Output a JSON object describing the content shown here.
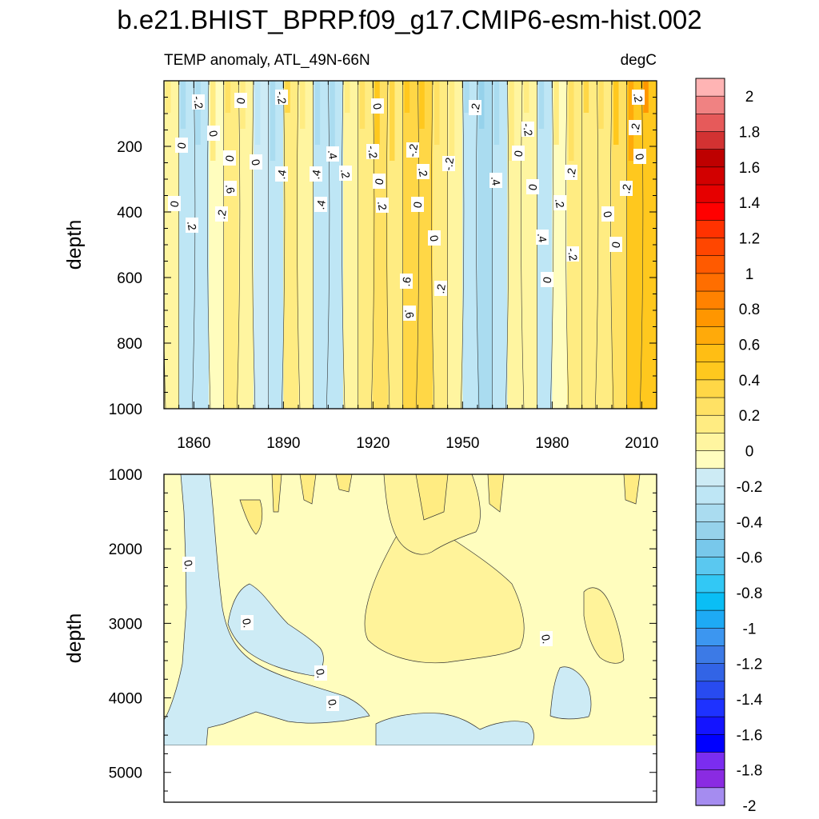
{
  "chart_data": {
    "type": "heatmap",
    "title": "b.e21.BHIST_BPRP.f09_g17.CMIP6-esm-hist.002",
    "subtitle_left": "TEMP anomaly, ATL_49N-66N",
    "subtitle_right": "degC",
    "xlim": [
      1850,
      2015
    ],
    "x_ticks": [
      1860,
      1890,
      1920,
      1950,
      1980,
      2010
    ],
    "x_tick_labels": [
      "1860",
      "1890",
      "1920",
      "1950",
      "1980",
      "2010"
    ],
    "upper_panel": {
      "ylabel": "depth",
      "ylim": [
        1000,
        0
      ],
      "y_ticks": [
        200,
        400,
        600,
        800,
        1000
      ],
      "y_tick_labels": [
        "200",
        "400",
        "600",
        "800",
        "1000"
      ],
      "columns": [
        {
          "year": 1851,
          "value": 0.15
        },
        {
          "year": 1856,
          "value": -0.15
        },
        {
          "year": 1861,
          "value": -0.1
        },
        {
          "year": 1866,
          "value": 0.05
        },
        {
          "year": 1871,
          "value": 0.2
        },
        {
          "year": 1876,
          "value": 0.1
        },
        {
          "year": 1881,
          "value": -0.05
        },
        {
          "year": 1886,
          "value": -0.15
        },
        {
          "year": 1891,
          "value": 0.3
        },
        {
          "year": 1896,
          "value": 0.15
        },
        {
          "year": 1901,
          "value": -0.1
        },
        {
          "year": 1906,
          "value": -0.15
        },
        {
          "year": 1911,
          "value": 0.1
        },
        {
          "year": 1916,
          "value": 0.2
        },
        {
          "year": 1921,
          "value": 0.35
        },
        {
          "year": 1926,
          "value": 0.25
        },
        {
          "year": 1931,
          "value": 0.4
        },
        {
          "year": 1936,
          "value": 0.45
        },
        {
          "year": 1941,
          "value": 0.2
        },
        {
          "year": 1946,
          "value": 0.15
        },
        {
          "year": 1951,
          "value": -0.1
        },
        {
          "year": 1956,
          "value": -0.2
        },
        {
          "year": 1961,
          "value": -0.15
        },
        {
          "year": 1966,
          "value": 0.1
        },
        {
          "year": 1971,
          "value": 0.15
        },
        {
          "year": 1976,
          "value": -0.15
        },
        {
          "year": 1981,
          "value": 0.05
        },
        {
          "year": 1986,
          "value": 0.2
        },
        {
          "year": 1991,
          "value": 0.25
        },
        {
          "year": 1996,
          "value": 0.2
        },
        {
          "year": 2001,
          "value": 0.35
        },
        {
          "year": 2006,
          "value": 0.5
        },
        {
          "year": 2011,
          "value": 0.6
        }
      ],
      "contour_labels": [
        "-.2",
        "0",
        "0",
        "0",
        "-.2",
        "0",
        ".2",
        "0",
        "0",
        ".4",
        ".6",
        ".2",
        ".4",
        ".4",
        ".2",
        ".4",
        "0",
        "-.2",
        "-.2",
        "0",
        ".2",
        "0",
        ".2",
        "-.2",
        "0",
        ".2",
        ".4",
        "0",
        "-.2",
        "0",
        ".2",
        ".2",
        ".4",
        "0",
        "-.2",
        "0",
        "0",
        ".2",
        "0",
        ".2",
        ".2",
        ".6",
        ".6",
        ".2"
      ]
    },
    "lower_panel": {
      "ylabel": "depth",
      "ylim": [
        5400,
        1000
      ],
      "data_bottom_depth": 4600,
      "y_ticks": [
        1000,
        2000,
        3000,
        4000,
        5000
      ],
      "y_tick_labels": [
        "1000",
        "2000",
        "3000",
        "4000",
        "5000"
      ],
      "contour_labels": [
        "0.",
        "0.",
        "0.",
        "0.",
        "0."
      ]
    },
    "colorbar": {
      "levels": [
        -2,
        -1.9,
        -1.8,
        -1.7,
        -1.6,
        -1.5,
        -1.4,
        -1.3,
        -1.2,
        -1.1,
        -1,
        -0.9,
        -0.8,
        -0.7,
        -0.6,
        -0.5,
        -0.4,
        -0.3,
        -0.2,
        -0.1,
        0,
        0.1,
        0.2,
        0.3,
        0.4,
        0.5,
        0.6,
        0.7,
        0.8,
        0.9,
        1,
        1.1,
        1.2,
        1.3,
        1.4,
        1.5,
        1.6,
        1.7,
        1.8,
        1.9,
        2,
        2.1
      ],
      "colors": [
        "#a58cf0",
        "#8a2be2",
        "#7b2df0",
        "#0000ff",
        "#1414ff",
        "#1e32ff",
        "#284bf0",
        "#3264e6",
        "#3c7ae6",
        "#3c96f0",
        "#1eaaf5",
        "#0abef5",
        "#32c8f5",
        "#5ac8f0",
        "#78c8eb",
        "#96d2eb",
        "#aadcf0",
        "#bee6f5",
        "#cdebf5",
        "#fffdbe",
        "#fff5a0",
        "#ffec82",
        "#ffe164",
        "#ffd746",
        "#ffc81e",
        "#ffbe14",
        "#ffaa0a",
        "#ff9600",
        "#ff8200",
        "#ff6e00",
        "#ff5a00",
        "#ff4600",
        "#ff3200",
        "#ff0000",
        "#e60000",
        "#d20000",
        "#be0000",
        "#d23232",
        "#e65a5a",
        "#f08282",
        "#ffb4b4"
      ],
      "tick_labels": [
        "2",
        "1.8",
        "1.6",
        "1.4",
        "1.2",
        "1",
        "0.8",
        "0.6",
        "0.4",
        "0.2",
        "0",
        "-0.2",
        "-0.4",
        "-0.6",
        "-0.8",
        "-1",
        "-1.2",
        "-1.4",
        "-1.6",
        "-1.8",
        "-2"
      ]
    }
  }
}
